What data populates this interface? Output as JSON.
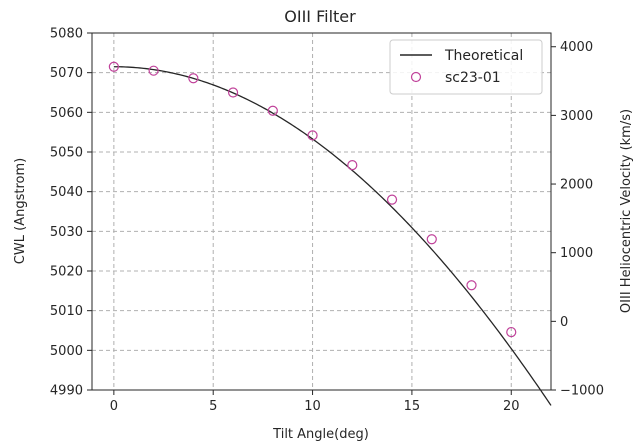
{
  "chart_data": {
    "type": "line",
    "title": "OIII Filter",
    "xlabel": "Tilt Angle(deg)",
    "ylabel": "CWL (Angstrom)",
    "y2label": "OIII Heliocentric Velocity (km/s)",
    "xlim": [
      -1.1,
      22.0
    ],
    "ylim": [
      4990,
      5080
    ],
    "y2lim": [
      -1000,
      4200
    ],
    "xticks": [
      0,
      5,
      10,
      15,
      20
    ],
    "yticks": [
      4990,
      5000,
      5010,
      5020,
      5030,
      5040,
      5050,
      5060,
      5070,
      5080
    ],
    "y2ticks": [
      -1000,
      0,
      1000,
      2000,
      3000,
      4000
    ],
    "grid": true,
    "legend_position": "top-right",
    "series": [
      {
        "name": "Theoretical",
        "style": "line",
        "color": "#262626",
        "cwl0": 5071.5,
        "n_eff": 2.05,
        "x_range": [
          0,
          22
        ]
      },
      {
        "name": "sc23-01",
        "style": "open-circle",
        "color": "#c0429a",
        "x": [
          0,
          2,
          4,
          6,
          8,
          10,
          12,
          14,
          16,
          18,
          20
        ],
        "y": [
          5071.5,
          5070.5,
          5068.6,
          5065.0,
          5060.4,
          5054.2,
          5046.7,
          5038.0,
          5028.0,
          5016.4,
          5004.6
        ]
      }
    ],
    "legend": [
      "Theoretical",
      "sc23-01"
    ]
  }
}
